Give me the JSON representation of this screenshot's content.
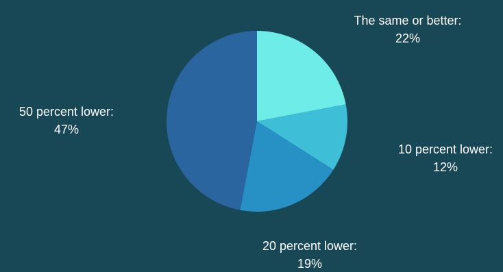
{
  "chart_data": {
    "type": "pie",
    "slices": [
      {
        "label": "The same or better:",
        "value": 22,
        "value_text": "22%",
        "color": "#6dece8"
      },
      {
        "label": "10 percent lower:",
        "value": 12,
        "value_text": "12%",
        "color": "#3fbed7"
      },
      {
        "label": "20 percent lower:",
        "value": 19,
        "value_text": "19%",
        "color": "#2790c4"
      },
      {
        "label": "50 percent lower:",
        "value": 47,
        "value_text": "47%",
        "color": "#2a65a0"
      }
    ]
  },
  "colors": {
    "background": "#184756",
    "label_text": "#ffffff"
  }
}
